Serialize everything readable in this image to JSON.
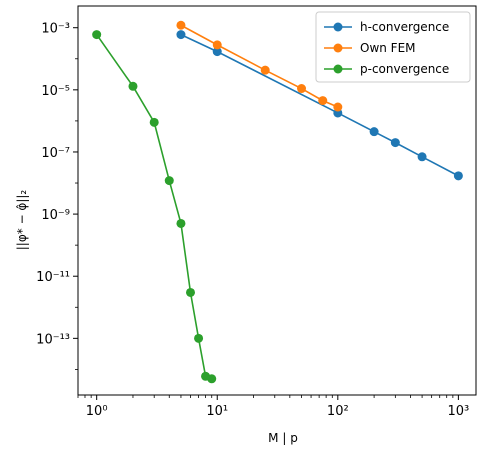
{
  "chart_data": {
    "type": "line",
    "x_scale": "log",
    "y_scale": "log",
    "xlabel": "M | p",
    "ylabel": "||φ* − φ̂||₂",
    "xlim": [
      0.7,
      1400
    ],
    "ylim": [
      1.5e-15,
      0.005
    ],
    "x_ticks": [
      1,
      10,
      100,
      1000
    ],
    "x_tick_labels": [
      "10⁰",
      "10¹",
      "10²",
      "10³"
    ],
    "y_ticks": [
      1e-13,
      1e-11,
      1e-09,
      1e-07,
      1e-05,
      0.001
    ],
    "y_tick_labels": [
      "10⁻¹³",
      "10⁻¹¹",
      "10⁻⁹",
      "10⁻⁷",
      "10⁻⁵",
      "10⁻³"
    ],
    "grid": false,
    "legend_position": "top-right",
    "series": [
      {
        "name": "h-convergence",
        "color": "#1f77b4",
        "x": [
          5,
          10,
          100,
          200,
          300,
          500,
          1000
        ],
        "y": [
          0.0006,
          0.00017,
          1.8e-06,
          4.5e-07,
          2e-07,
          7e-08,
          1.7e-08
        ]
      },
      {
        "name": "Own FEM",
        "color": "#ff7f0e",
        "x": [
          5,
          10,
          25,
          50,
          75,
          100
        ],
        "y": [
          0.0012,
          0.00028,
          4.3e-05,
          1.1e-05,
          4.5e-06,
          2.8e-06
        ]
      },
      {
        "name": "p-convergence",
        "color": "#2ca02c",
        "x": [
          1,
          2,
          3,
          4,
          5,
          6,
          7,
          8,
          9
        ],
        "y": [
          0.0006,
          1.3e-05,
          9e-07,
          1.2e-08,
          5e-10,
          3e-12,
          1e-13,
          6e-15,
          5e-15
        ]
      }
    ]
  }
}
